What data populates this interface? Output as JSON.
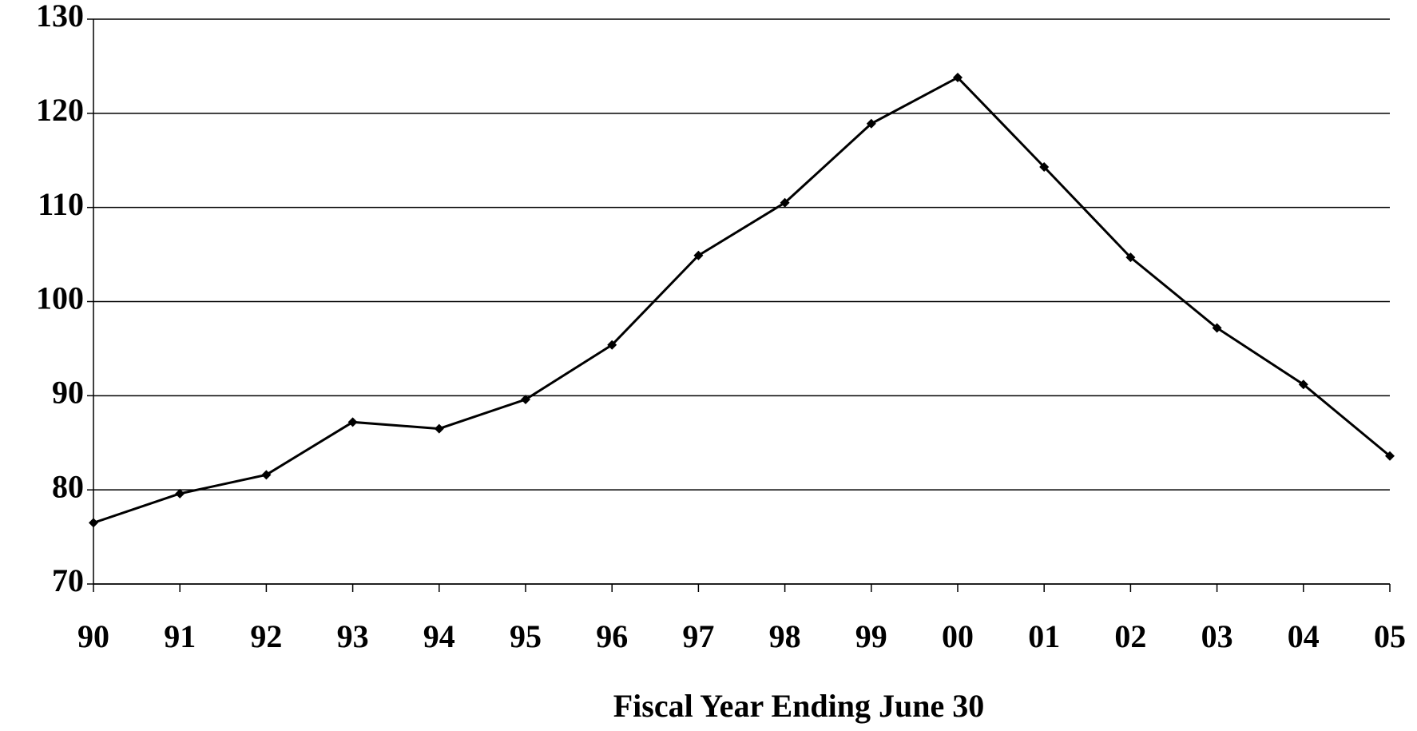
{
  "chart_data": {
    "type": "line",
    "x_label": "Fiscal Year Ending June 30",
    "categories": [
      "90",
      "91",
      "92",
      "93",
      "94",
      "95",
      "96",
      "97",
      "98",
      "99",
      "00",
      "01",
      "02",
      "03",
      "04",
      "05"
    ],
    "values": [
      76.5,
      79.6,
      81.6,
      87.2,
      86.5,
      89.6,
      95.4,
      104.9,
      110.5,
      118.9,
      123.8,
      114.3,
      104.7,
      97.2,
      91.2,
      83.6
    ],
    "color": "#000000",
    "ylim": [
      70,
      130
    ],
    "yticks": [
      70,
      80,
      90,
      100,
      110,
      120,
      130
    ],
    "grid": true
  }
}
